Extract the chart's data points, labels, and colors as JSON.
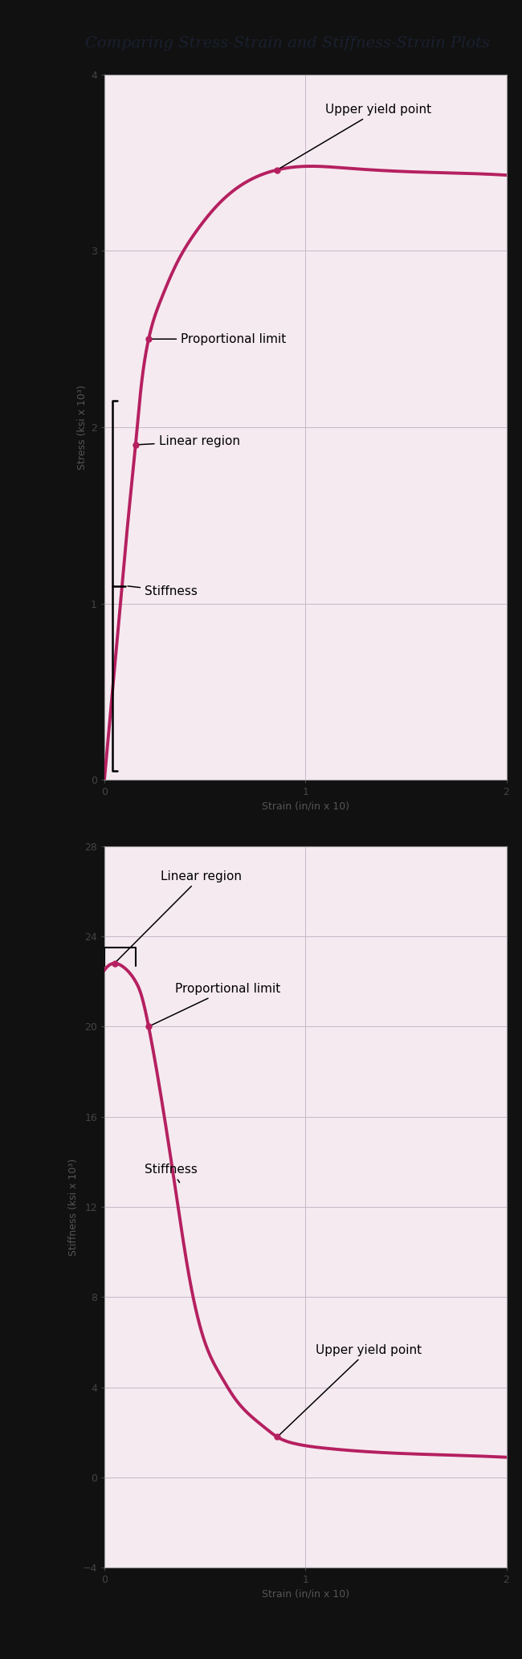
{
  "title": "Comparing Stress-Strain and Stiffness-Strain Plots",
  "title_fontsize": 14,
  "background_color": "#f5eaf0",
  "outer_background": "#111111",
  "curve_color": "#b52060",
  "curve_linewidth": 2.8,
  "fig_bg": "#111111",
  "plot1": {
    "xlabel": "Strain (in/in x 10)",
    "ylabel": "Stress (ksi x 10³)",
    "xlim": [
      0,
      2
    ],
    "ylim": [
      0,
      4
    ],
    "yticks": [
      0,
      1,
      2,
      3,
      4
    ],
    "xticks": [
      0,
      1,
      2
    ]
  },
  "plot2": {
    "xlabel": "Strain (in/in x 10)",
    "ylabel": "Stiffness (ksi x 10³)",
    "xlim": [
      0,
      2
    ],
    "ylim": [
      -4,
      28
    ],
    "yticks": [
      -4,
      0,
      4,
      8,
      12,
      16,
      20,
      24,
      28
    ],
    "xticks": [
      0,
      1,
      2
    ]
  }
}
